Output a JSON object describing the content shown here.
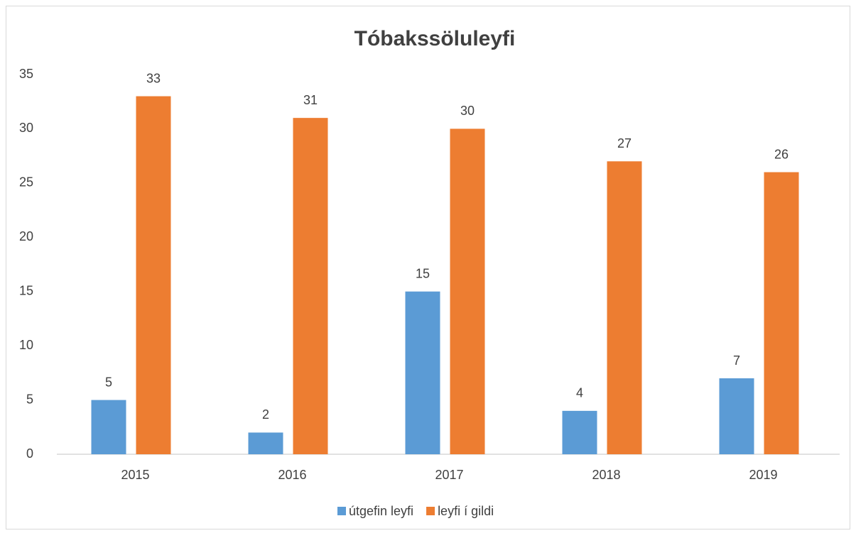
{
  "chart_data": {
    "type": "bar",
    "title": "Tóbakssöluleyfi",
    "categories": [
      "2015",
      "2016",
      "2017",
      "2018",
      "2019"
    ],
    "series": [
      {
        "name": "útgefin leyfi",
        "color": "#5b9bd5",
        "values": [
          5,
          2,
          15,
          4,
          7
        ]
      },
      {
        "name": "leyfi í gildi",
        "color": "#ed7d31",
        "values": [
          33,
          31,
          30,
          27,
          26
        ]
      }
    ],
    "ylim": [
      0,
      35
    ],
    "yticks": [
      0,
      5,
      10,
      15,
      20,
      25,
      30,
      35
    ],
    "grid": false,
    "legend": "bottom"
  }
}
